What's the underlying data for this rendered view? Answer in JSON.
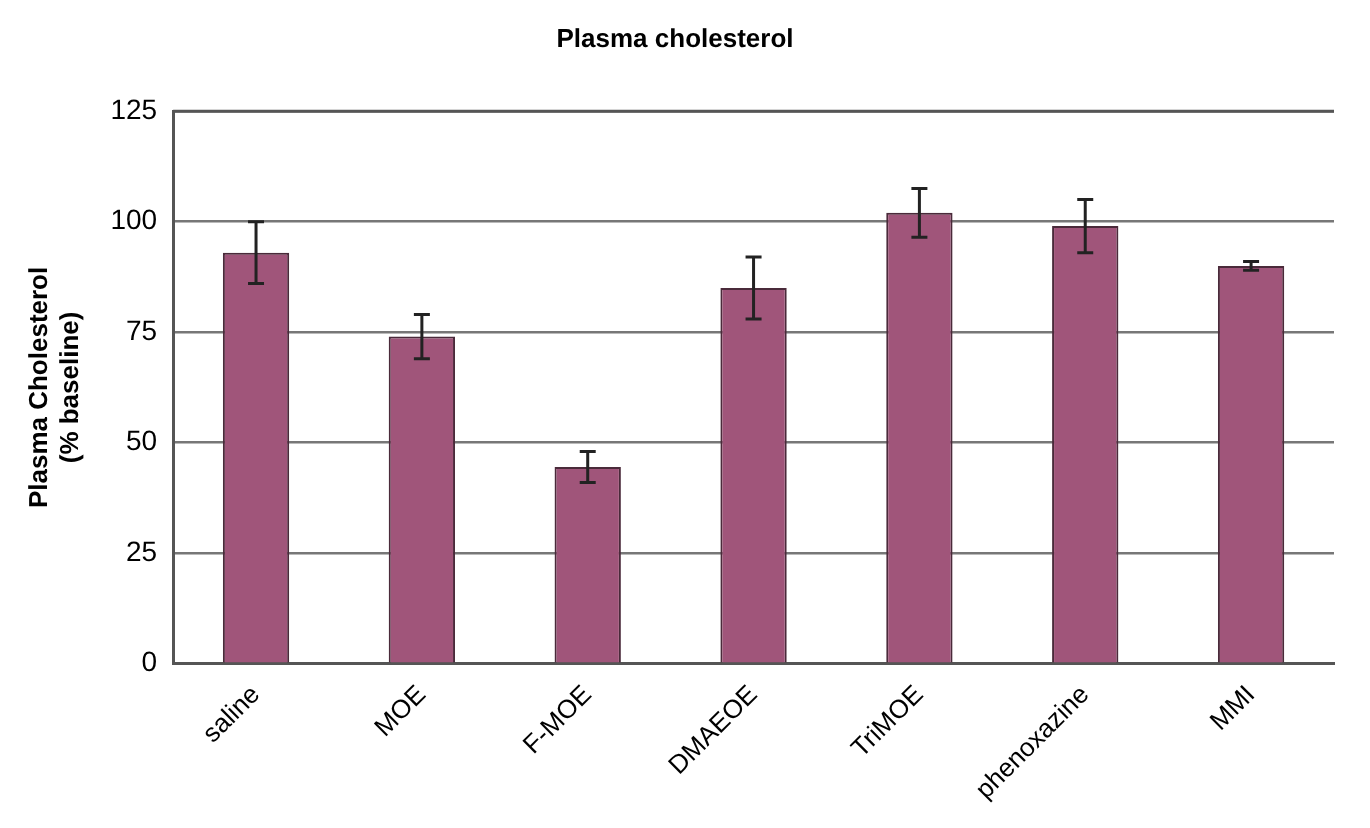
{
  "chart_data": {
    "type": "bar",
    "title": "Plasma cholesterol",
    "ylabel": "Plasma Cholesterol (% baseline)",
    "categories": [
      "saline",
      "MOE",
      "F-MOE",
      "DMAEOE",
      "TriMOE",
      "phenoxazine",
      "MMI"
    ],
    "values": [
      93,
      74,
      44.5,
      85,
      102,
      99,
      90
    ],
    "errors": [
      7,
      5,
      3.5,
      7,
      5.5,
      6,
      1
    ],
    "color": "#a0557a",
    "ylim": [
      0,
      125
    ],
    "yticks": [
      0,
      25,
      50,
      75,
      100,
      125
    ],
    "grid": "y",
    "legend": false
  }
}
